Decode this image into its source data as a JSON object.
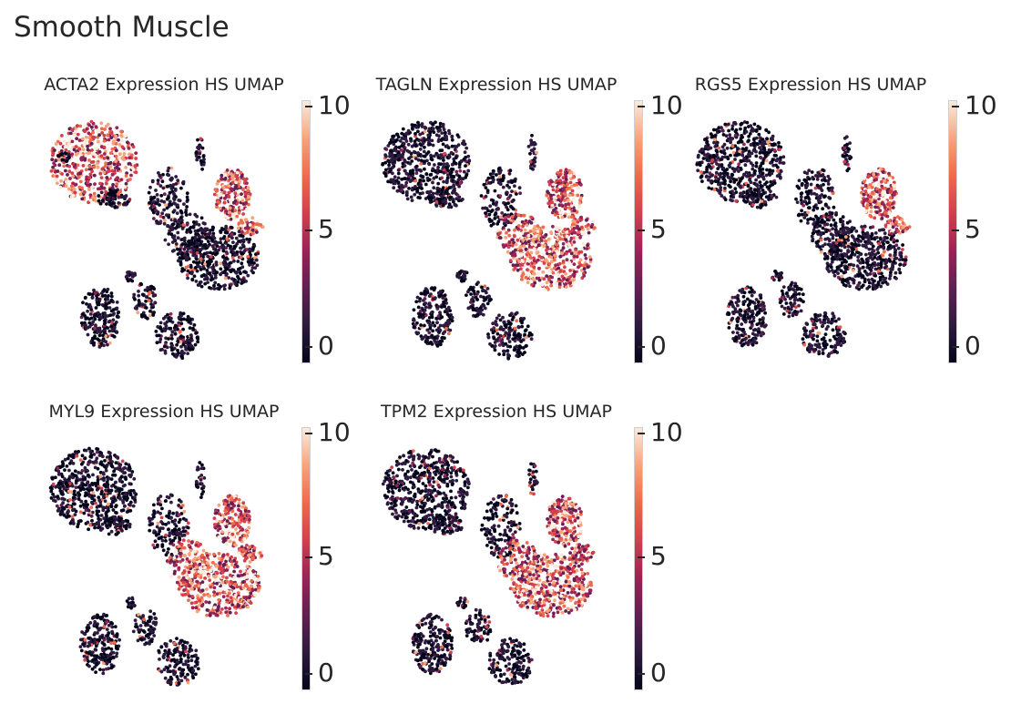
{
  "title": "Smooth Muscle",
  "colormap": [
    "#03051a",
    "#2e1a3f",
    "#611f53",
    "#9a2356",
    "#d33f4d",
    "#ef6a4b",
    "#f6a47c",
    "#faebdd"
  ],
  "chart_data": [
    {
      "type": "scatter",
      "title": "ACTA2 Expression HS UMAP",
      "colorbar": {
        "ticks": [
          "0",
          "5",
          "10"
        ],
        "range": [
          0,
          10
        ]
      },
      "hot_regions": [
        "top-left-cluster",
        "right-top-cluster"
      ]
    },
    {
      "type": "scatter",
      "title": "TAGLN Expression HS UMAP",
      "colorbar": {
        "ticks": [
          "0",
          "5",
          "10"
        ],
        "range": [
          0,
          10
        ]
      },
      "hot_regions": [
        "right-top-cluster",
        "center-cluster"
      ]
    },
    {
      "type": "scatter",
      "title": "RGS5 Expression HS UMAP",
      "colorbar": {
        "ticks": [
          "0",
          "5",
          "10"
        ],
        "range": [
          0,
          10
        ]
      },
      "hot_regions": [
        "right-top-cluster"
      ]
    },
    {
      "type": "scatter",
      "title": "MYL9 Expression HS UMAP",
      "colorbar": {
        "ticks": [
          "0",
          "5",
          "10"
        ],
        "range": [
          0,
          10
        ]
      },
      "hot_regions": [
        "right-top-cluster",
        "center-cluster"
      ]
    },
    {
      "type": "scatter",
      "title": "TPM2 Expression HS UMAP",
      "colorbar": {
        "ticks": [
          "0",
          "5",
          "10"
        ],
        "range": [
          0,
          10
        ]
      },
      "hot_regions": [
        "right-top-cluster",
        "center-cluster"
      ]
    }
  ]
}
